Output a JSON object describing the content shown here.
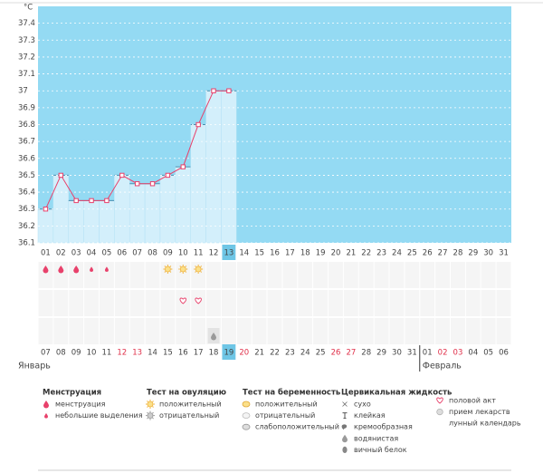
{
  "chart_data": {
    "type": "line",
    "unit": "°C",
    "categories": [
      "01",
      "02",
      "03",
      "04",
      "05",
      "06",
      "07",
      "08",
      "09",
      "10",
      "11",
      "12",
      "13",
      "14",
      "15",
      "16",
      "17",
      "18",
      "19",
      "20",
      "21",
      "22",
      "23",
      "24",
      "25",
      "26",
      "27",
      "28",
      "29",
      "30",
      "31"
    ],
    "values": [
      36.3,
      36.5,
      36.35,
      36.35,
      36.35,
      36.5,
      36.45,
      36.45,
      36.5,
      36.55,
      36.8,
      37.0,
      37.0,
      null,
      null,
      null,
      null,
      null,
      null,
      null,
      null,
      null,
      null,
      null,
      null,
      null,
      null,
      null,
      null,
      null,
      null
    ],
    "line_color": "#e8416b",
    "bar_color": "#d3effb",
    "background": "#94daf3",
    "ylim": [
      36.1,
      37.5
    ],
    "yticks": [
      36.1,
      36.2,
      36.3,
      36.4,
      36.5,
      36.6,
      36.7,
      36.8,
      36.9,
      37,
      37.1,
      37.2,
      37.3,
      37.4
    ],
    "grid": true,
    "highlight": 12
  },
  "symbols": [
    {
      "day": 0,
      "icon": "drop"
    },
    {
      "day": 1,
      "icon": "drop"
    },
    {
      "day": 2,
      "icon": "drop"
    },
    {
      "day": 3,
      "icon": "small-drop"
    },
    {
      "day": 4,
      "icon": "small-drop"
    },
    {
      "day": 8,
      "icon": "sun"
    },
    {
      "day": 9,
      "icon": "sun"
    },
    {
      "day": 10,
      "icon": "sun"
    },
    {
      "day": 9,
      "icon": "heart"
    },
    {
      "day": 10,
      "icon": "heart"
    },
    {
      "day": 11,
      "icon": "water-drop"
    }
  ],
  "calendar": {
    "dates": [
      "07",
      "08",
      "09",
      "10",
      "11",
      "12",
      "13",
      "14",
      "15",
      "16",
      "17",
      "18",
      "19",
      "20",
      "21",
      "22",
      "23",
      "24",
      "25",
      "26",
      "27",
      "28",
      "29",
      "30",
      "31",
      "01",
      "02",
      "03",
      "04",
      "05",
      "06"
    ],
    "weekend": [
      5,
      6,
      13,
      19,
      20,
      26,
      27
    ],
    "highlight": 12,
    "months": [
      {
        "label": "Январь",
        "start": 0
      },
      {
        "label": "Февраль",
        "start": 25
      }
    ]
  },
  "legend": [
    {
      "title": "Менструация",
      "items": [
        {
          "label": "менструация",
          "icon": "drop"
        },
        {
          "label": "небольшие выделения",
          "icon": "small-drop"
        }
      ]
    },
    {
      "title": "Тест на овуляцию",
      "items": [
        {
          "label": "положительный",
          "icon": "sun"
        },
        {
          "label": "отрицательный",
          "icon": "sun-gray"
        }
      ]
    },
    {
      "title": "Тест на беременность",
      "items": [
        {
          "label": "положительный",
          "icon": "preg-pos"
        },
        {
          "label": "отрицательный",
          "icon": "preg-neg"
        },
        {
          "label": "слабоположительный",
          "icon": "preg-weak"
        }
      ]
    },
    {
      "title": "Цервикальная жидкость",
      "items": [
        {
          "label": "сухо",
          "icon": "cross"
        },
        {
          "label": "клейкая",
          "icon": "tee"
        },
        {
          "label": "кремообразная",
          "icon": "cream"
        },
        {
          "label": "водянистая",
          "icon": "water-drop"
        },
        {
          "label": "вичный белок",
          "icon": "egg"
        }
      ]
    },
    {
      "items": [
        {
          "label": "половой акт",
          "icon": "heart"
        },
        {
          "label": "прием лекарств",
          "icon": "pill"
        },
        {
          "label": "лунный календарь",
          "icon": "moon"
        }
      ]
    }
  ]
}
